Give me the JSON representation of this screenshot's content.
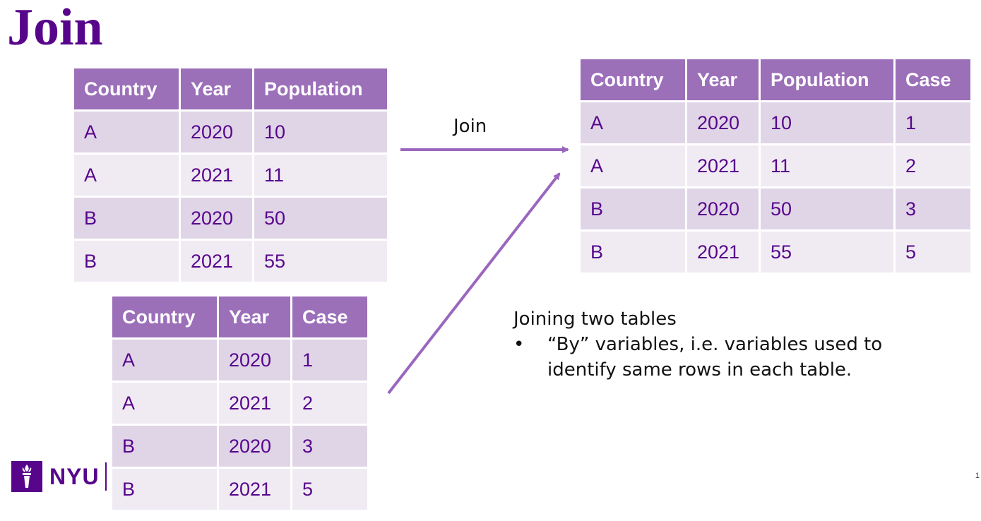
{
  "slide": {
    "title": "Join",
    "page_number": "1",
    "arrow_label": "Join",
    "notes": {
      "heading": "Joining two tables",
      "bullets": [
        "“By” variables, i.e. variables used to identify same rows in each table."
      ]
    },
    "logo": {
      "wordmark": "NYU",
      "icon": "torch-icon"
    }
  },
  "colors": {
    "brand_purple": "#57068c",
    "header_fill": "#9c6fb9",
    "row_dark": "#e0d5e7",
    "row_light": "#f0ebf3",
    "arrow": "#9a67bd"
  },
  "population_table": {
    "headers": [
      "Country",
      "Year",
      "Population"
    ],
    "rows": [
      [
        "A",
        "2020",
        "10"
      ],
      [
        "A",
        "2021",
        "11"
      ],
      [
        "B",
        "2020",
        "50"
      ],
      [
        "B",
        "2021",
        "55"
      ]
    ]
  },
  "case_table": {
    "headers": [
      "Country",
      "Year",
      "Case"
    ],
    "rows": [
      [
        "A",
        "2020",
        "1"
      ],
      [
        "A",
        "2021",
        "2"
      ],
      [
        "B",
        "2020",
        "3"
      ],
      [
        "B",
        "2021",
        "5"
      ]
    ]
  },
  "joined_table": {
    "headers": [
      "Country",
      "Year",
      "Population",
      "Case"
    ],
    "rows": [
      [
        "A",
        "2020",
        "10",
        "1"
      ],
      [
        "A",
        "2021",
        "11",
        "2"
      ],
      [
        "B",
        "2020",
        "50",
        "3"
      ],
      [
        "B",
        "2021",
        "55",
        "5"
      ]
    ]
  }
}
